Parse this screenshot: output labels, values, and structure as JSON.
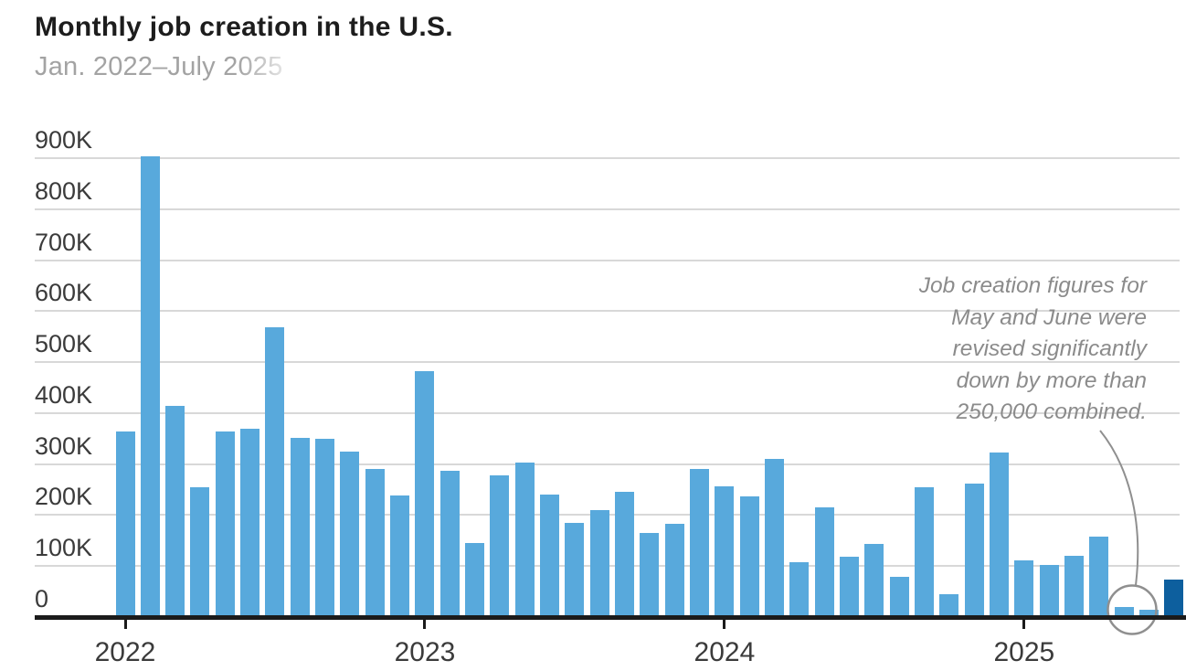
{
  "title": "Monthly job creation in the U.S.",
  "subtitle": "Jan. 2022–July 2025",
  "annotation": {
    "text": "Job creation figures for\nMay and June were\nrevised significantly\ndown by more than\n250,000 combined."
  },
  "chart_data": {
    "type": "bar",
    "title": "Monthly job creation in the U.S.",
    "subtitle": "Jan. 2022–July 2025",
    "ylabel": "",
    "xlabel": "",
    "grid": true,
    "ylim": [
      0,
      900000
    ],
    "y_tick_labels": [
      "0",
      "100K",
      "200K",
      "300K",
      "400K",
      "500K",
      "600K",
      "700K",
      "800K",
      "900K"
    ],
    "x_tick_labels": [
      "2022",
      "2023",
      "2024",
      "2025"
    ],
    "x_tick_month_index": [
      0,
      12,
      24,
      36
    ],
    "categories": [
      "Jan 2022",
      "Feb 2022",
      "Mar 2022",
      "Apr 2022",
      "May 2022",
      "Jun 2022",
      "Jul 2022",
      "Aug 2022",
      "Sep 2022",
      "Oct 2022",
      "Nov 2022",
      "Dec 2022",
      "Jan 2023",
      "Feb 2023",
      "Mar 2023",
      "Apr 2023",
      "May 2023",
      "Jun 2023",
      "Jul 2023",
      "Aug 2023",
      "Sep 2023",
      "Oct 2023",
      "Nov 2023",
      "Dec 2023",
      "Jan 2024",
      "Feb 2024",
      "Mar 2024",
      "Apr 2024",
      "May 2024",
      "Jun 2024",
      "Jul 2024",
      "Aug 2024",
      "Sep 2024",
      "Oct 2024",
      "Nov 2024",
      "Dec 2024",
      "Jan 2025",
      "Feb 2025",
      "Mar 2025",
      "Apr 2025",
      "May 2025",
      "Jun 2025",
      "Jul 2025"
    ],
    "values": [
      364000,
      904000,
      414000,
      254000,
      364000,
      370000,
      568000,
      352000,
      350000,
      324000,
      290000,
      239000,
      482000,
      287000,
      146000,
      278000,
      303000,
      240000,
      184000,
      210000,
      246000,
      165000,
      182000,
      290000,
      256000,
      236000,
      310000,
      108000,
      216000,
      118000,
      144000,
      78000,
      255000,
      44000,
      261000,
      323000,
      111000,
      102000,
      120000,
      158000,
      19000,
      14000,
      73000
    ],
    "highlight_circled_months": [
      "May 2025",
      "Jun 2025"
    ],
    "dark_bar_month": "Jul 2025",
    "legend": false
  },
  "colors": {
    "bar": "#58a9dc",
    "bar_dark": "#0d5f9e",
    "grid": "#d8d8d8",
    "axis": "#1b1b1b",
    "title": "#1d1d1d",
    "subtitle": "#a3a3a3",
    "tick_label": "#3b3b3b",
    "annotation": "#8b8b8b",
    "circle": "#8f8f8f"
  }
}
